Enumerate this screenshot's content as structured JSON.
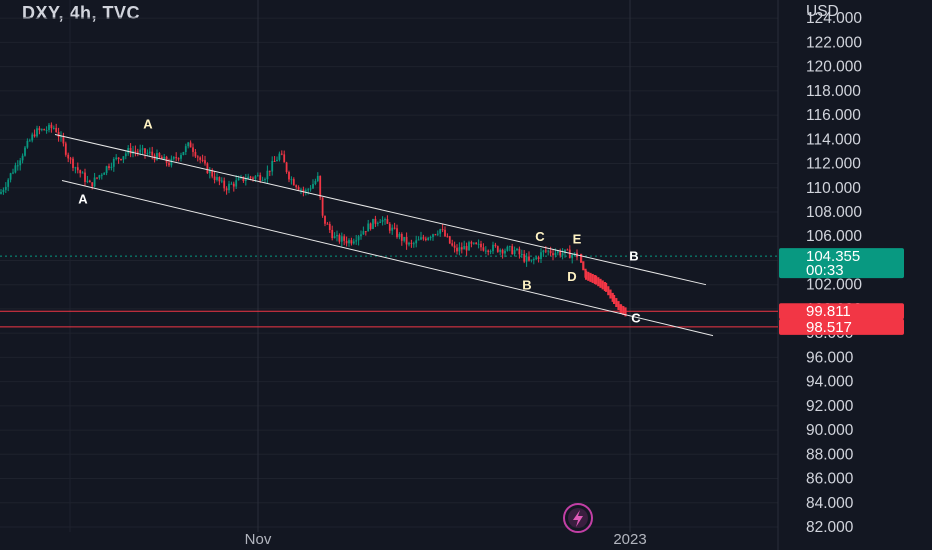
{
  "header": {
    "title": "DXY, 4h, TVC"
  },
  "chart_data": {
    "type": "candlestick",
    "symbol": "DXY",
    "timeframe": "4h",
    "source": "TVC",
    "currency_label": "USD",
    "y_ticks": [
      82,
      84,
      86,
      88,
      90,
      92,
      94,
      96,
      98,
      100,
      102,
      104,
      106,
      108,
      110,
      112,
      114,
      116,
      118,
      120,
      122,
      124
    ],
    "y_tick_labels": [
      "82.000",
      "84.000",
      "86.000",
      "88.000",
      "90.000",
      "92.000",
      "94.000",
      "96.000",
      "98.000",
      "100.000",
      "102.000",
      "104.000",
      "106.000",
      "108.000",
      "110.000",
      "112.000",
      "114.000",
      "116.000",
      "118.000",
      "120.000",
      "122.000",
      "124.000"
    ],
    "x_labels": [
      "Nov",
      "2023"
    ],
    "ylim": [
      82,
      124
    ],
    "price_path": [
      [
        0,
        109.5
      ],
      [
        20,
        112.5
      ],
      [
        35,
        114.6
      ],
      [
        55,
        115.0
      ],
      [
        70,
        112.3
      ],
      [
        90,
        110.2
      ],
      [
        110,
        112.0
      ],
      [
        130,
        113.1
      ],
      [
        150,
        112.8
      ],
      [
        170,
        112.0
      ],
      [
        190,
        113.6
      ],
      [
        205,
        111.7
      ],
      [
        225,
        110.0
      ],
      [
        245,
        110.8
      ],
      [
        265,
        111.0
      ],
      [
        280,
        112.8
      ],
      [
        290,
        110.8
      ],
      [
        305,
        109.6
      ],
      [
        318,
        110.8
      ],
      [
        322,
        107.6
      ],
      [
        335,
        105.8
      ],
      [
        350,
        105.6
      ],
      [
        365,
        106.6
      ],
      [
        380,
        107.5
      ],
      [
        395,
        106.3
      ],
      [
        410,
        105.2
      ],
      [
        440,
        106.6
      ],
      [
        455,
        104.8
      ],
      [
        470,
        105.2
      ],
      [
        495,
        105.0
      ],
      [
        515,
        104.8
      ],
      [
        530,
        103.8
      ],
      [
        545,
        104.8
      ],
      [
        565,
        104.6
      ],
      [
        578,
        104.4
      ]
    ],
    "projection": [
      [
        580,
        104.2
      ],
      [
        585,
        102.8
      ],
      [
        595,
        102.4
      ],
      [
        605,
        101.8
      ],
      [
        613,
        100.8
      ],
      [
        620,
        100.0
      ],
      [
        626,
        99.7
      ]
    ],
    "channel_lines": [
      {
        "from": [
          55,
          114.4
        ],
        "to": [
          706,
          102.0
        ]
      },
      {
        "from": [
          62,
          110.6
        ],
        "to": [
          713,
          97.8
        ]
      }
    ],
    "wave_labels": [
      {
        "text": "A",
        "x": 148,
        "y": 114.9,
        "color": "#fff3c4"
      },
      {
        "text": "A",
        "x": 83,
        "y": 108.7,
        "color": "#ffffff"
      },
      {
        "text": "C",
        "x": 540,
        "y": 105.6,
        "color": "#fff3c4"
      },
      {
        "text": "E",
        "x": 577,
        "y": 105.4,
        "color": "#fff3c4"
      },
      {
        "text": "B",
        "x": 527,
        "y": 101.6,
        "color": "#fff3c4"
      },
      {
        "text": "D",
        "x": 572,
        "y": 102.3,
        "color": "#fff3c4"
      },
      {
        "text": "B",
        "x": 634,
        "y": 104.0,
        "color": "#ffffff"
      },
      {
        "text": "C",
        "x": 636,
        "y": 98.9,
        "color": "#ffffff"
      }
    ],
    "horizontal_levels": [
      {
        "value": 99.811,
        "label": "99.811",
        "color": "#f23645"
      },
      {
        "value": 98.517,
        "label": "98.517",
        "color": "#f23645"
      }
    ],
    "current_price": {
      "value": 104.355,
      "label": "104.355",
      "countdown": "00:33",
      "color": "#089981"
    },
    "colors": {
      "background": "#131722",
      "up": "#089981",
      "down": "#f23645",
      "grid": "#1e222d",
      "line": "#d1d4dc"
    }
  }
}
